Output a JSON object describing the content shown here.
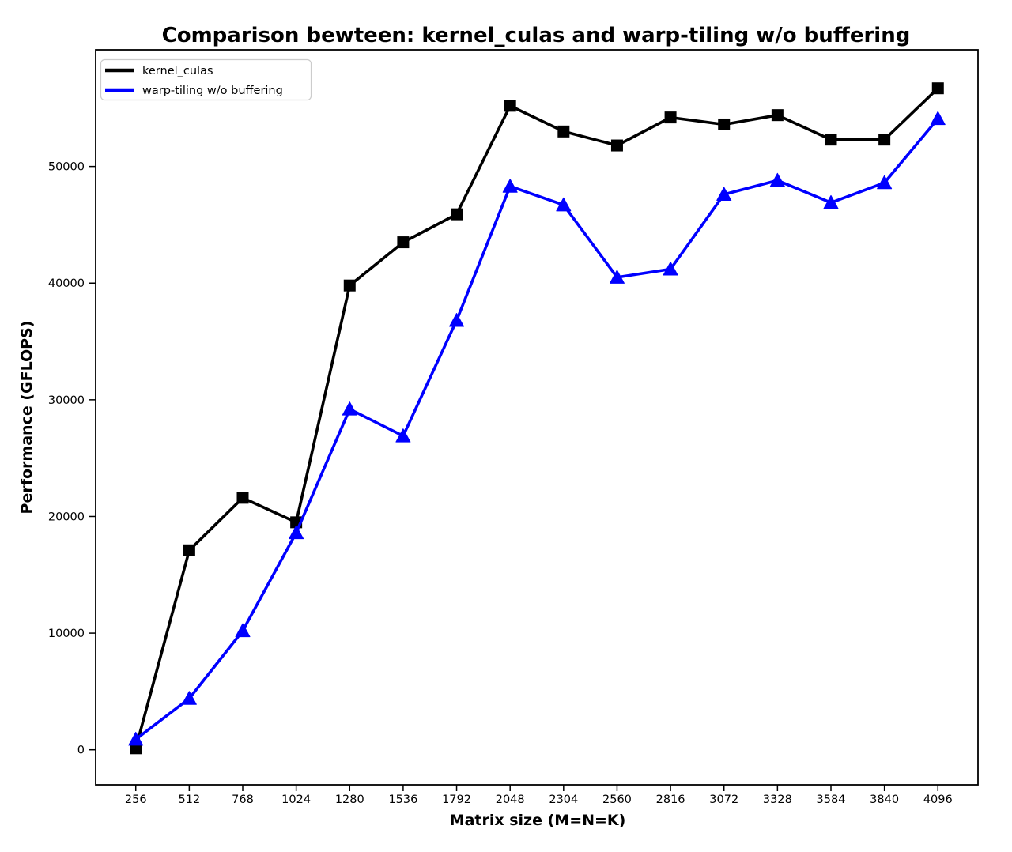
{
  "chart_data": {
    "type": "line",
    "title": "Comparison bewteen: kernel_culas and warp-tiling w/o buffering",
    "xlabel": "Matrix size (M=N=K)",
    "ylabel": "Performance (GFLOPS)",
    "x": [
      256,
      512,
      768,
      1024,
      1280,
      1536,
      1792,
      2048,
      2304,
      2560,
      2816,
      3072,
      3328,
      3584,
      3840,
      4096
    ],
    "xtick_labels": [
      "256",
      "512",
      "768",
      "1024",
      "1280",
      "1536",
      "1792",
      "2048",
      "2304",
      "2560",
      "2816",
      "3072",
      "3328",
      "3584",
      "3840",
      "4096"
    ],
    "yticks": [
      0,
      10000,
      20000,
      30000,
      40000,
      50000
    ],
    "xlim": [
      64,
      4288
    ],
    "ylim": [
      -3000,
      60000
    ],
    "grid": false,
    "legend_position": "upper left",
    "series": [
      {
        "name": "kernel_culas",
        "color": "#000000",
        "marker": "square",
        "values": [
          130,
          17100,
          21600,
          19500,
          39800,
          43500,
          45900,
          55200,
          53000,
          51800,
          54200,
          53600,
          54400,
          52300,
          52300,
          56700
        ]
      },
      {
        "name": "warp-tiling w/o buffering",
        "color": "#0000ff",
        "marker": "triangle-up",
        "values": [
          900,
          4400,
          10200,
          18600,
          29200,
          26900,
          36800,
          48300,
          46700,
          40500,
          41200,
          47600,
          48800,
          46900,
          48600,
          54100
        ]
      }
    ]
  }
}
